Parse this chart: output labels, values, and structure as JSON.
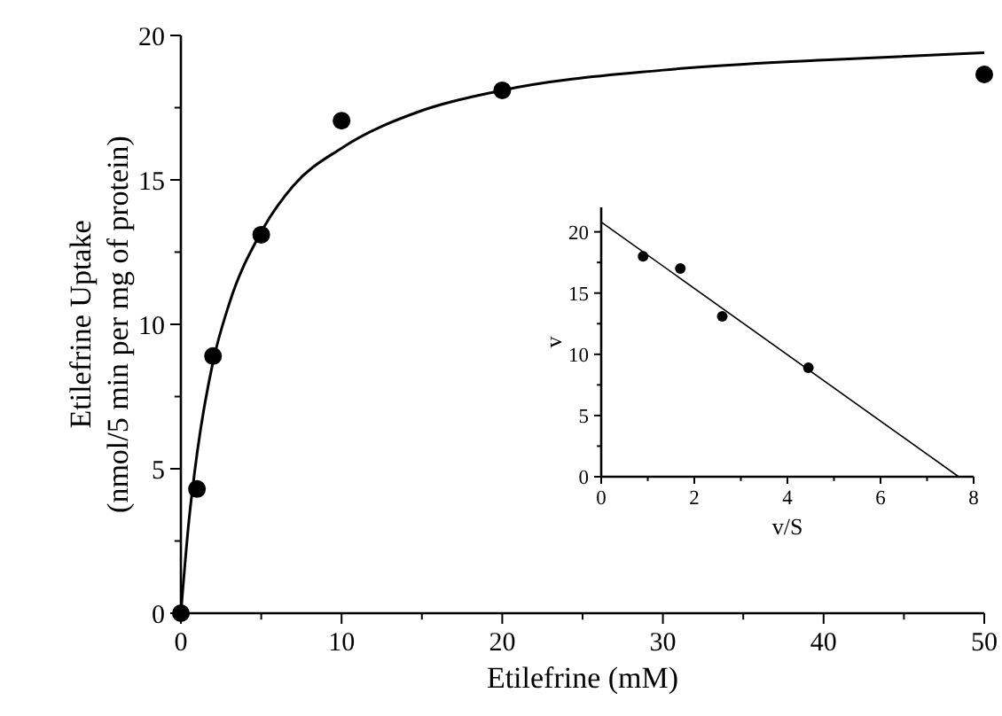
{
  "chart_data": [
    {
      "type": "scatter",
      "xlabel": "Etilefrine (mM)",
      "ylabel": "Etilefrine Uptake\n(nmol/5 min per mg of protein)",
      "xlim": [
        0,
        50
      ],
      "ylim": [
        0,
        20
      ],
      "xticks": [
        0,
        {
          "value": 5,
          "label": null
        },
        10,
        {
          "value": 15,
          "label": null
        },
        20,
        {
          "value": 25,
          "label": null
        },
        30,
        {
          "value": 35,
          "label": null
        },
        40,
        {
          "value": 45,
          "label": null
        },
        50
      ],
      "yticks": [
        0,
        {
          "value": 2.5,
          "label": null
        },
        5,
        {
          "value": 7.5,
          "label": null
        },
        10,
        {
          "value": 12.5,
          "label": null
        },
        15,
        {
          "value": 17.5,
          "label": null
        },
        20
      ],
      "series": [
        {
          "color": "#000000",
          "marker": "circle",
          "x": [
            0,
            1,
            2,
            5,
            10,
            20,
            50
          ],
          "values": [
            0,
            4.3,
            8.9,
            13.1,
            17.05,
            18.1,
            18.65
          ]
        },
        {
          "type": "line",
          "color": "#000000",
          "line_style": "solid",
          "x": [
            0,
            0.5,
            1,
            2,
            3,
            5,
            7,
            10,
            15,
            20,
            30,
            40,
            50
          ],
          "values": [
            0,
            3.2,
            5.5,
            8.7,
            10.7,
            13.2,
            14.8,
            16.1,
            17.4,
            18.1,
            18.8,
            19.15,
            19.4
          ]
        }
      ]
    },
    {
      "type": "scatter",
      "xlabel": "v/S",
      "ylabel": "v",
      "xlim": [
        0,
        8
      ],
      "ylim": [
        0,
        22
      ],
      "xticks": [
        0,
        {
          "value": 1,
          "label": null
        },
        2,
        {
          "value": 3,
          "label": null
        },
        4,
        {
          "value": 5,
          "label": null
        },
        6,
        {
          "value": 7,
          "label": null
        },
        8
      ],
      "yticks": [
        0,
        {
          "value": 2.5,
          "label": null
        },
        5,
        {
          "value": 7.5,
          "label": null
        },
        10,
        {
          "value": 12.5,
          "label": null
        },
        15,
        {
          "value": 17.5,
          "label": null
        },
        20
      ],
      "series": [
        {
          "color": "#000000",
          "marker": "circle",
          "x": [
            0.9,
            1.7,
            2.6,
            4.45
          ],
          "values": [
            18,
            17,
            13.1,
            8.9
          ]
        },
        {
          "type": "line",
          "color": "#000000",
          "line_style": "solid",
          "x": [
            0,
            7.68
          ],
          "values": [
            20.8,
            0
          ]
        }
      ]
    }
  ]
}
